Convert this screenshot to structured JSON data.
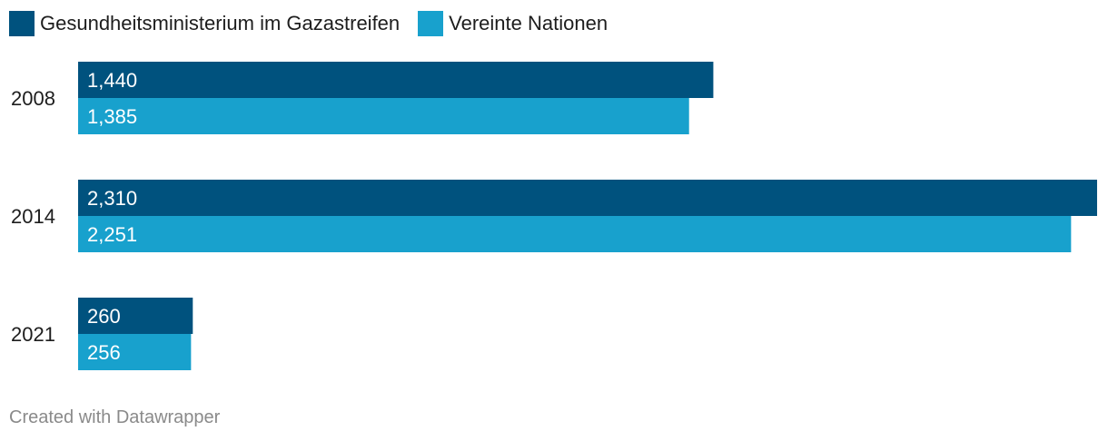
{
  "chart_data": {
    "type": "bar",
    "orientation": "horizontal",
    "categories": [
      "2008",
      "2014",
      "2021"
    ],
    "series": [
      {
        "name": "Gesundheitsministerium im Gazastreifen",
        "color": "#00527e",
        "values": [
          1440,
          2310,
          260
        ],
        "labels": [
          "1,440",
          "2,310",
          "260"
        ]
      },
      {
        "name": "Vereinte Nationen",
        "color": "#18a1cd",
        "values": [
          1385,
          2251,
          256
        ],
        "labels": [
          "1,385",
          "2,251",
          "256"
        ]
      }
    ],
    "xlim": [
      0,
      2310
    ],
    "grid": false,
    "legend_position": "top-left"
  },
  "legend": [
    {
      "label": "Gesundheitsministerium im Gazastreifen",
      "color": "#00527e"
    },
    {
      "label": "Vereinte Nationen",
      "color": "#18a1cd"
    }
  ],
  "footer": {
    "credit": "Created with Datawrapper"
  }
}
